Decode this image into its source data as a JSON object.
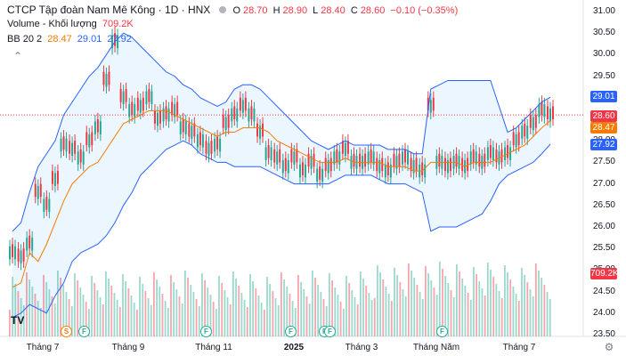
{
  "header": {
    "title": "CTCP Tập đoàn Nam Mê Kông · 1D · HNX",
    "ohlc": {
      "o_label": "O",
      "o": "28.70",
      "h_label": "H",
      "h": "28.90",
      "l_label": "L",
      "l": "28.40",
      "c_label": "C",
      "c": "28.60",
      "change": "−0.10 (−0.35%)"
    },
    "volume_label": "Volume - Khối lượng",
    "volume_value": "709.2K",
    "bb_label": "BB 20 2",
    "bb_basis": "28.47",
    "bb_upper": "29.01",
    "bb_lower": "27.92"
  },
  "y_axis": [
    "31.00",
    "30.50",
    "30.00",
    "29.50",
    "29.00",
    "28.50",
    "28.00",
    "27.50",
    "27.00",
    "26.50",
    "26.00",
    "25.50",
    "25.00",
    "24.50",
    "24.00",
    "23.50"
  ],
  "badges": {
    "upper": "29.01",
    "close": "28.60",
    "basis": "28.47",
    "lower": "27.92",
    "volume": "709.2K"
  },
  "x_axis": [
    {
      "label": "Tháng 7",
      "bold": false
    },
    {
      "label": "Tháng 9",
      "bold": false
    },
    {
      "label": "Tháng 11",
      "bold": false
    },
    {
      "label": "2025",
      "bold": true
    },
    {
      "label": "Tháng 3",
      "bold": false
    },
    {
      "label": "Tháng Năm",
      "bold": false
    },
    {
      "label": "Tháng 7",
      "bold": false
    }
  ],
  "events": [
    {
      "type": "s",
      "label": "S"
    },
    {
      "type": "f",
      "label": "F"
    },
    {
      "type": "f",
      "label": "F"
    },
    {
      "type": "f",
      "label": "F"
    },
    {
      "type": "f",
      "label": "F"
    },
    {
      "type": "f",
      "label": "F"
    },
    {
      "type": "f",
      "label": "F"
    }
  ],
  "logo_text": "TV",
  "colors": {
    "up": "#22ab94",
    "down": "#f23645",
    "basis": "#f57c00",
    "band": "#2962ff",
    "fill": "#e3f2fd"
  },
  "chart_data": {
    "type": "line",
    "ylim": [
      23.5,
      31.0
    ],
    "ylabel": "",
    "xlabel": "",
    "series": [
      {
        "values": [
          25.4,
          25.3,
          25.6,
          26.8,
          26.5,
          27.1,
          27.9,
          27.8,
          27.6,
          28.0,
          28.3,
          29.4,
          30.3,
          29.0,
          28.7,
          28.8,
          29.0,
          28.5,
          28.6,
          28.7,
          28.3,
          28.2,
          28.0,
          27.8,
          27.9,
          28.4,
          28.6,
          28.8,
          28.6,
          28.2,
          27.7,
          27.6,
          27.4,
          27.6,
          27.3,
          27.5,
          27.2,
          27.4,
          27.6,
          27.8,
          27.5,
          27.5,
          27.6,
          27.4,
          27.3,
          27.5,
          27.6,
          27.4,
          27.3,
          28.8,
          27.5,
          27.4,
          27.5,
          27.4,
          27.6,
          27.5,
          27.7,
          27.6,
          27.7,
          28.0,
          28.2,
          28.4,
          28.7,
          28.6
        ]
      },
      {
        "values": [
          24.6,
          24.7,
          25.4,
          25.2,
          25.6,
          26.1,
          26.6,
          27.0,
          27.2,
          27.4,
          27.5,
          27.8,
          28.1,
          28.4,
          28.5,
          28.6,
          28.7,
          28.7,
          28.7,
          28.6,
          28.5,
          28.4,
          28.3,
          28.2,
          28.1,
          28.2,
          28.2,
          28.3,
          28.3,
          28.3,
          28.2,
          28.0,
          27.9,
          27.8,
          27.7,
          27.6,
          27.5,
          27.5,
          27.5,
          27.6,
          27.5,
          27.5,
          27.5,
          27.5,
          27.4,
          27.4,
          27.4,
          27.3,
          27.3,
          27.5,
          27.5,
          27.5,
          27.5,
          27.4,
          27.5,
          27.5,
          27.5,
          27.6,
          27.7,
          27.8,
          27.9,
          28.1,
          28.3,
          28.47
        ]
      },
      {
        "values": [
          25.9,
          26.1,
          26.8,
          27.4,
          27.7,
          28.0,
          28.6,
          28.9,
          29.2,
          29.5,
          29.7,
          30.0,
          30.3,
          30.5,
          30.4,
          30.2,
          30.0,
          29.8,
          29.6,
          29.5,
          29.3,
          29.2,
          29.0,
          28.9,
          28.8,
          28.9,
          29.2,
          29.3,
          29.3,
          29.2,
          29.0,
          28.8,
          28.6,
          28.4,
          28.2,
          28.0,
          27.9,
          27.8,
          27.9,
          28.0,
          27.9,
          27.9,
          27.9,
          27.9,
          27.8,
          27.8,
          27.8,
          27.7,
          27.7,
          29.2,
          29.3,
          29.4,
          29.4,
          29.4,
          29.4,
          29.4,
          29.4,
          28.8,
          28.2,
          28.3,
          28.5,
          28.7,
          28.9,
          29.01
        ]
      },
      {
        "values": [
          23.9,
          24.0,
          24.2,
          24.1,
          24.0,
          24.4,
          24.7,
          25.2,
          25.4,
          25.5,
          25.6,
          25.8,
          26.1,
          26.5,
          26.8,
          27.2,
          27.4,
          27.6,
          27.8,
          27.9,
          28.0,
          27.9,
          27.7,
          27.6,
          27.5,
          27.5,
          27.4,
          27.4,
          27.4,
          27.4,
          27.3,
          27.2,
          27.1,
          27.0,
          27.0,
          27.0,
          27.0,
          27.0,
          27.1,
          27.2,
          27.2,
          27.2,
          27.2,
          27.1,
          27.0,
          27.0,
          27.0,
          26.9,
          26.8,
          25.9,
          26.0,
          26.0,
          26.0,
          26.1,
          26.2,
          26.3,
          26.6,
          27.0,
          27.2,
          27.3,
          27.4,
          27.5,
          27.7,
          27.92
        ]
      }
    ]
  }
}
